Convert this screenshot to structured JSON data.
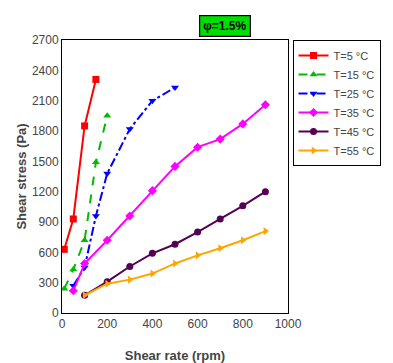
{
  "chart_data": {
    "type": "line",
    "xlabel": "Shear rate (rpm)",
    "ylabel": "Shear stress (Pa)",
    "xlim": [
      0,
      1000
    ],
    "ylim": [
      0,
      2700
    ],
    "xticks": [
      0,
      200,
      400,
      600,
      800,
      1000
    ],
    "yticks": [
      0,
      300,
      600,
      900,
      1200,
      1500,
      1800,
      2100,
      2400,
      2700
    ],
    "grid": false,
    "legend": "upper right",
    "annotations": [
      {
        "text": "φ=1.5%",
        "color": "#00dd00"
      }
    ],
    "series": [
      {
        "name": "T=5 °C",
        "color": "red",
        "line_style": "solid",
        "marker": "square",
        "x": [
          10,
          50,
          100,
          150
        ],
        "values": [
          630,
          930,
          1850,
          2310
        ]
      },
      {
        "name": "T=15 °C",
        "color": "#00bb00",
        "line_style": "dashed",
        "marker": "triangle-up",
        "x": [
          10,
          50,
          100,
          150,
          200
        ],
        "values": [
          240,
          430,
          720,
          1490,
          1950
        ]
      },
      {
        "name": "T=25 °C",
        "color": "blue",
        "line_style": "dashdot",
        "marker": "triangle-down",
        "x": [
          50,
          100,
          150,
          200,
          300,
          400,
          500
        ],
        "values": [
          270,
          450,
          960,
          1380,
          1820,
          2100,
          2230
        ]
      },
      {
        "name": "T=35 °C",
        "color": "magenta",
        "line_style": "solid",
        "marker": "diamond",
        "x": [
          50,
          100,
          200,
          300,
          400,
          500,
          600,
          700,
          800,
          900
        ],
        "values": [
          220,
          490,
          720,
          960,
          1210,
          1450,
          1640,
          1720,
          1870,
          2060
        ]
      },
      {
        "name": "T=45 °C",
        "color": "#550055",
        "line_style": "solid",
        "marker": "circle",
        "x": [
          100,
          200,
          300,
          400,
          500,
          600,
          700,
          800,
          900
        ],
        "values": [
          175,
          310,
          460,
          590,
          680,
          800,
          930,
          1060,
          1200
        ]
      },
      {
        "name": "T=55 °C",
        "color": "orange",
        "line_style": "solid",
        "marker": "triangle-right",
        "x": [
          100,
          200,
          300,
          400,
          500,
          600,
          700,
          800,
          900
        ],
        "values": [
          175,
          290,
          330,
          390,
          490,
          570,
          640,
          720,
          810
        ]
      }
    ]
  }
}
